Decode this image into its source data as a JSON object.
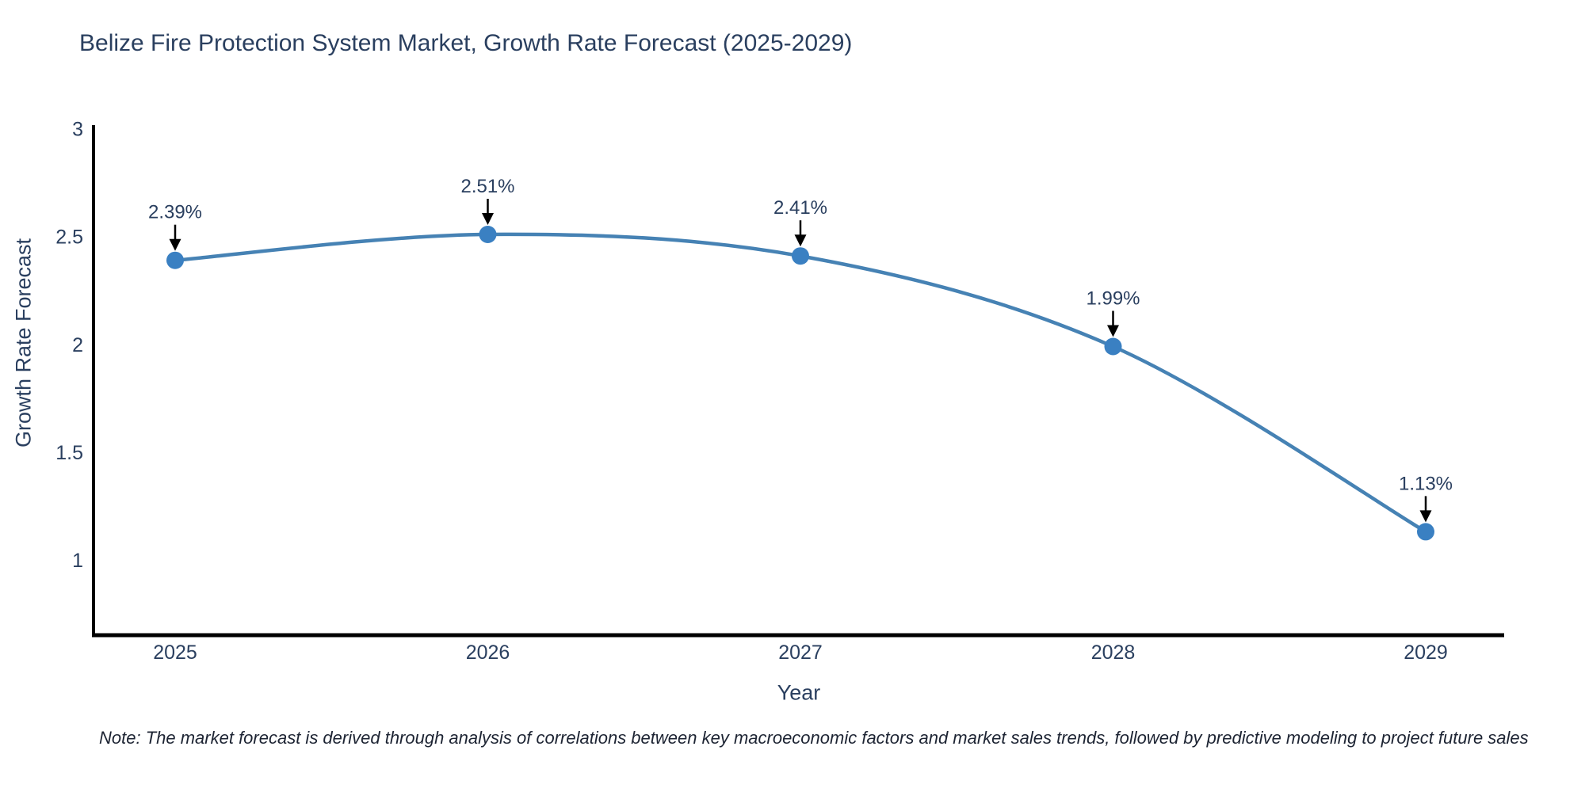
{
  "chart_data": {
    "type": "line",
    "title": "Belize Fire Protection System Market, Growth Rate Forecast (2025-2029)",
    "xlabel": "Year",
    "ylabel": "Growth Rate Forecast",
    "x": [
      2025,
      2026,
      2027,
      2028,
      2029
    ],
    "series": [
      {
        "name": "Growth Rate Forecast",
        "values": [
          2.39,
          2.51,
          2.41,
          1.99,
          1.13
        ]
      }
    ],
    "point_labels": [
      "2.39%",
      "2.51%",
      "2.41%",
      "1.99%",
      "1.13%"
    ],
    "yticks": [
      1,
      1.5,
      2,
      2.5,
      3
    ],
    "ylim": [
      0.65,
      3.01
    ],
    "grid": false,
    "legend_position": "none",
    "curve": "spline",
    "colors": {
      "line": "#4682b4",
      "marker": "#3a80c2",
      "axis": "#000000",
      "annotation_arrow": "#000000",
      "text": "#2a3f5f"
    }
  },
  "note": "Note: The market forecast is derived through analysis of correlations between key macroeconomic factors and market sales trends, followed by predictive modeling to project future sales"
}
